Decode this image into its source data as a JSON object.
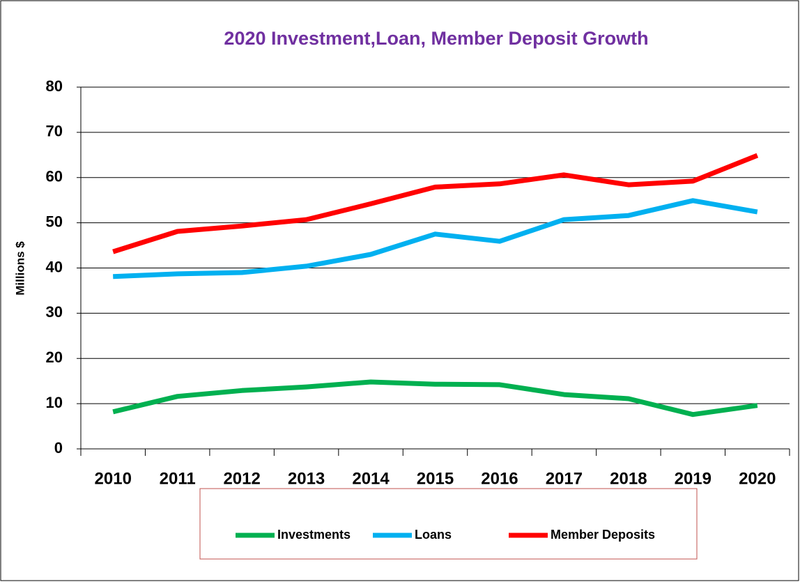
{
  "chart_data": {
    "type": "line",
    "title": "2020 Investment,Loan, Member Deposit Growth",
    "y_axis_label": "Millions $",
    "categories": [
      "2010",
      "2011",
      "2012",
      "2013",
      "2014",
      "2015",
      "2016",
      "2017",
      "2018",
      "2019",
      "2020"
    ],
    "series": [
      {
        "name": "Investments",
        "color": "#00b050",
        "values": [
          8.2,
          11.6,
          12.9,
          13.7,
          14.8,
          14.3,
          14.2,
          12.0,
          11.1,
          7.6,
          9.6
        ]
      },
      {
        "name": "Loans",
        "color": "#00b0f0",
        "values": [
          38.1,
          38.7,
          39.0,
          40.4,
          43.0,
          47.5,
          45.9,
          50.7,
          51.6,
          54.9,
          52.4
        ]
      },
      {
        "name": "Member Deposits",
        "color": "#ff0000",
        "values": [
          43.6,
          48.1,
          49.3,
          50.7,
          54.2,
          57.9,
          58.6,
          60.6,
          58.4,
          59.2,
          64.9
        ]
      }
    ],
    "ylim": [
      0,
      80
    ],
    "yticks": [
      0,
      10,
      20,
      30,
      40,
      50,
      60,
      70,
      80
    ],
    "grid": true,
    "legend": "bottom"
  }
}
